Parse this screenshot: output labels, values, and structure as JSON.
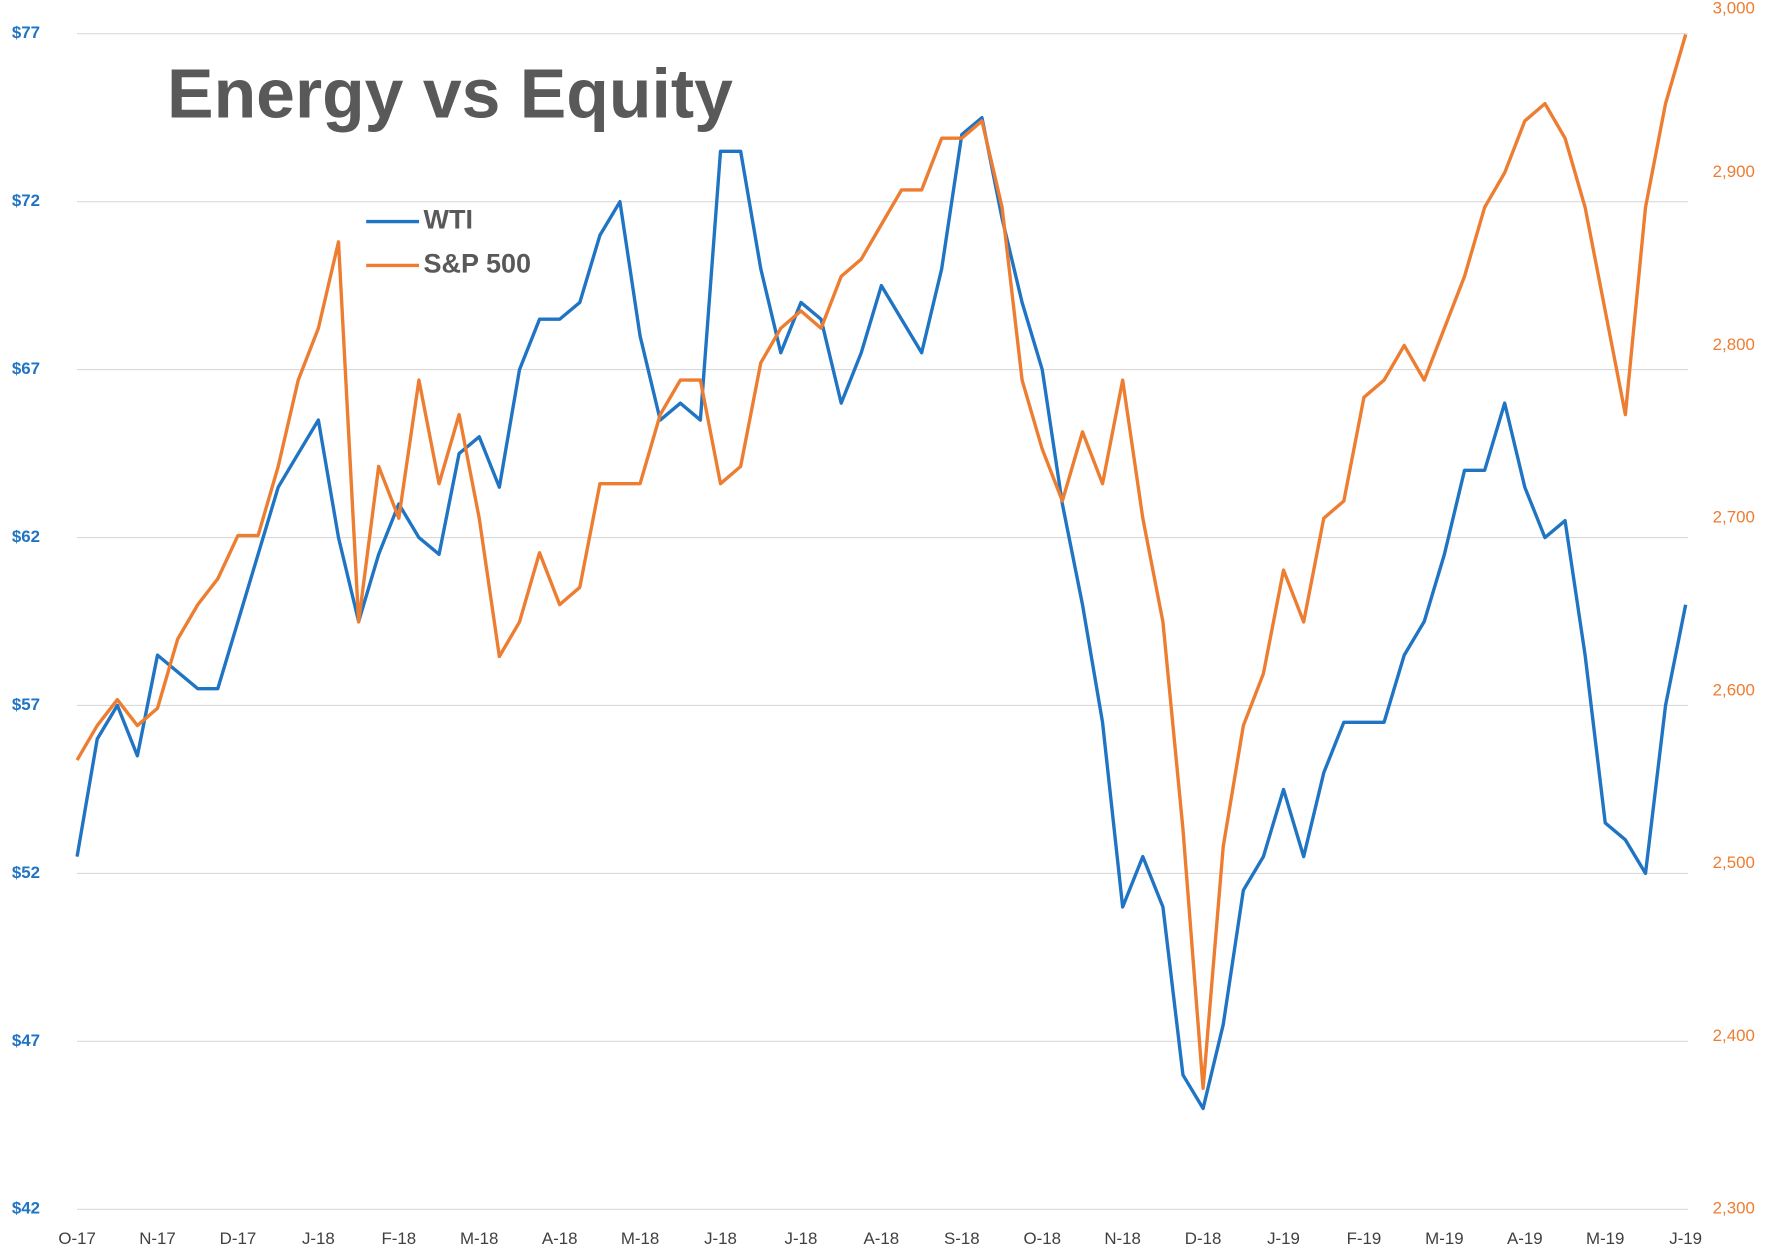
{
  "chart_data": {
    "type": "line",
    "title": "Energy vs Equity",
    "categories": [
      "O-17",
      null,
      null,
      null,
      "N-17",
      null,
      null,
      null,
      "D-17",
      null,
      null,
      null,
      "J-18",
      null,
      null,
      null,
      "F-18",
      null,
      null,
      null,
      "M-18",
      null,
      null,
      null,
      "A-18",
      null,
      null,
      null,
      "M-18",
      null,
      null,
      null,
      "J-18",
      null,
      null,
      null,
      "J-18",
      null,
      null,
      null,
      "A-18",
      null,
      null,
      null,
      "S-18",
      null,
      null,
      null,
      "O-18",
      null,
      null,
      null,
      "N-18",
      null,
      null,
      null,
      "D-18",
      null,
      null,
      null,
      "J-19",
      null,
      null,
      null,
      "F-19",
      null,
      null,
      null,
      "M-19",
      null,
      null,
      null,
      "A-19",
      null,
      null,
      null,
      "M-19",
      null,
      null,
      null,
      "J-19"
    ],
    "series": [
      {
        "name": "WTI",
        "color": "#1f74c4",
        "values": [
          52.5,
          56,
          57,
          55.5,
          58.5,
          58,
          57.5,
          57.5,
          59.5,
          61.5,
          63.5,
          64.5,
          65.5,
          62,
          59.5,
          61.5,
          63,
          62,
          61.5,
          64.5,
          65,
          63.5,
          67,
          68.5,
          68.5,
          69,
          71,
          72,
          68,
          65.5,
          66,
          65.5,
          73.5,
          73.5,
          70,
          67.5,
          69,
          68.5,
          66,
          67.5,
          69.5,
          68.5,
          67.5,
          70,
          74,
          74.5,
          71.5,
          69,
          67,
          63,
          60,
          56.5,
          51,
          52.5,
          51,
          46,
          45,
          47.5,
          51.5,
          52.5,
          54.5,
          52.5,
          55,
          56.5,
          56.5,
          56.5,
          58.5,
          59.5,
          61.5,
          64,
          64,
          66,
          63.5,
          62,
          62.5,
          58.5,
          53.5,
          53,
          52,
          57,
          60
        ]
      },
      {
        "name": "S&P 500",
        "color": "#ed7d31",
        "axis": "y2",
        "values": [
          2560,
          2580,
          2595,
          2580,
          2590,
          2630,
          2650,
          2665,
          2690,
          2690,
          2730,
          2780,
          2810,
          2860,
          2640,
          2730,
          2700,
          2780,
          2720,
          2760,
          2700,
          2620,
          2640,
          2680,
          2650,
          2660,
          2720,
          2720,
          2720,
          2760,
          2780,
          2780,
          2720,
          2730,
          2790,
          2810,
          2820,
          2810,
          2840,
          2850,
          2870,
          2890,
          2890,
          2920,
          2920,
          2930,
          2880,
          2780,
          2740,
          2710,
          2750,
          2720,
          2780,
          2700,
          2640,
          2520,
          2370,
          2510,
          2580,
          2610,
          2670,
          2640,
          2700,
          2710,
          2770,
          2780,
          2800,
          2780,
          2810,
          2840,
          2880,
          2900,
          2930,
          2940,
          2920,
          2880,
          2820,
          2760,
          2880,
          2940,
          2980
        ]
      }
    ],
    "ylim": [
      42,
      77
    ],
    "yticks": [
      {
        "value": 42,
        "label": "$42"
      },
      {
        "value": 47,
        "label": "$47"
      },
      {
        "value": 52,
        "label": "$52"
      },
      {
        "value": 57,
        "label": "$57"
      },
      {
        "value": 62,
        "label": "$62"
      },
      {
        "value": 67,
        "label": "$67"
      },
      {
        "value": 72,
        "label": "$72"
      },
      {
        "value": 77,
        "label": "$77"
      }
    ],
    "y2lim": [
      2300,
      3000
    ],
    "y2ticks": [
      {
        "value": 2300,
        "label": "2,300"
      },
      {
        "value": 2400,
        "label": "2,400"
      },
      {
        "value": 2500,
        "label": "2,500"
      },
      {
        "value": 2600,
        "label": "2,600"
      },
      {
        "value": 2700,
        "label": "2,700"
      },
      {
        "value": 2800,
        "label": "2,800"
      },
      {
        "value": 2900,
        "label": "2,900"
      },
      {
        "value": 3000,
        "label": "3,000"
      }
    ],
    "grid": true
  }
}
